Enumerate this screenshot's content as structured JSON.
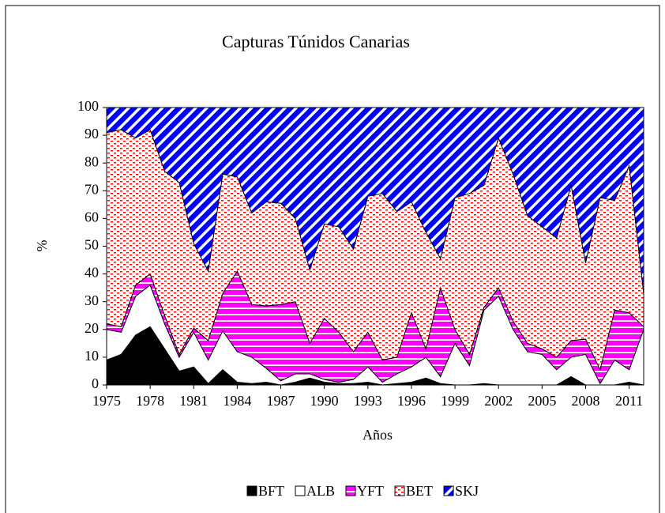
{
  "chart_data": {
    "type": "stacked_area",
    "title": "Capturas Túnidos Canarias",
    "x_label": "Años",
    "y_label": "%",
    "x": [
      1975,
      1976,
      1977,
      1978,
      1979,
      1980,
      1981,
      1982,
      1983,
      1984,
      1985,
      1986,
      1987,
      1988,
      1989,
      1990,
      1991,
      1992,
      1993,
      1994,
      1995,
      1996,
      1997,
      1998,
      1999,
      2000,
      2001,
      2002,
      2003,
      2004,
      2005,
      2006,
      2007,
      2008,
      2009,
      2010,
      2011,
      2012
    ],
    "xlim": [
      1975,
      2012
    ],
    "xticks": [
      1975,
      1978,
      1981,
      1984,
      1987,
      1990,
      1993,
      1996,
      1999,
      2002,
      2005,
      2008,
      2011
    ],
    "ylim": [
      0,
      100
    ],
    "yticks": [
      0,
      10,
      20,
      30,
      40,
      50,
      60,
      70,
      80,
      90,
      100
    ],
    "legend": "bottom",
    "series": [
      {
        "name": "BFT",
        "color": "#000000",
        "values": [
          9,
          11,
          18,
          21,
          13,
          5,
          6.5,
          0.5,
          5.5,
          1,
          0.5,
          1,
          0,
          1,
          2.5,
          1,
          0.5,
          0.5,
          1,
          0,
          0.5,
          1,
          2.5,
          0.5,
          0,
          0,
          0.5,
          0,
          0,
          0,
          0,
          0,
          3,
          0,
          0,
          0,
          1,
          0
        ]
      },
      {
        "name": "ALB",
        "color": "#ffffff",
        "values": [
          11,
          8,
          14,
          15,
          9,
          5,
          12.5,
          8.5,
          14,
          11,
          9.5,
          5,
          1.5,
          3,
          1.5,
          1,
          0.5,
          1.5,
          5.5,
          1,
          3.5,
          5.5,
          7.5,
          2.5,
          15,
          7,
          26.5,
          32,
          20,
          12,
          11,
          5.5,
          7,
          11,
          0.5,
          9,
          4.5,
          20
        ]
      },
      {
        "name": "YFT",
        "color": "#ff00ff",
        "values": [
          2,
          2,
          4,
          4,
          3,
          1,
          1.5,
          7,
          13.5,
          29,
          19,
          22.5,
          27.5,
          26,
          11,
          22,
          18,
          10,
          12.5,
          8,
          6,
          19.5,
          3,
          32,
          5,
          4,
          1,
          3,
          3,
          3,
          2,
          4.5,
          6,
          5.5,
          5,
          18,
          20.5,
          1
        ]
      },
      {
        "name": "BET",
        "color": "#ff0000",
        "values": [
          69,
          71,
          53,
          52,
          52,
          62,
          30.5,
          25,
          43,
          34,
          33,
          37.5,
          36.5,
          30,
          26.5,
          34,
          38,
          37,
          49,
          60,
          52.5,
          40,
          42,
          10.5,
          47.5,
          58,
          44,
          54,
          53,
          46,
          44,
          43,
          56,
          27.5,
          62,
          39.5,
          53,
          12
        ]
      },
      {
        "name": "SKJ",
        "color": "#0000ff",
        "values": [
          9,
          8,
          11,
          8,
          23,
          27,
          49,
          59,
          24,
          25,
          38,
          34,
          34.5,
          40,
          58.5,
          42,
          43,
          51,
          32,
          31,
          37.5,
          34,
          45,
          54.5,
          32.5,
          31,
          28,
          11,
          24,
          39,
          43,
          47,
          28,
          56,
          32.5,
          33.5,
          21,
          67
        ]
      }
    ]
  }
}
